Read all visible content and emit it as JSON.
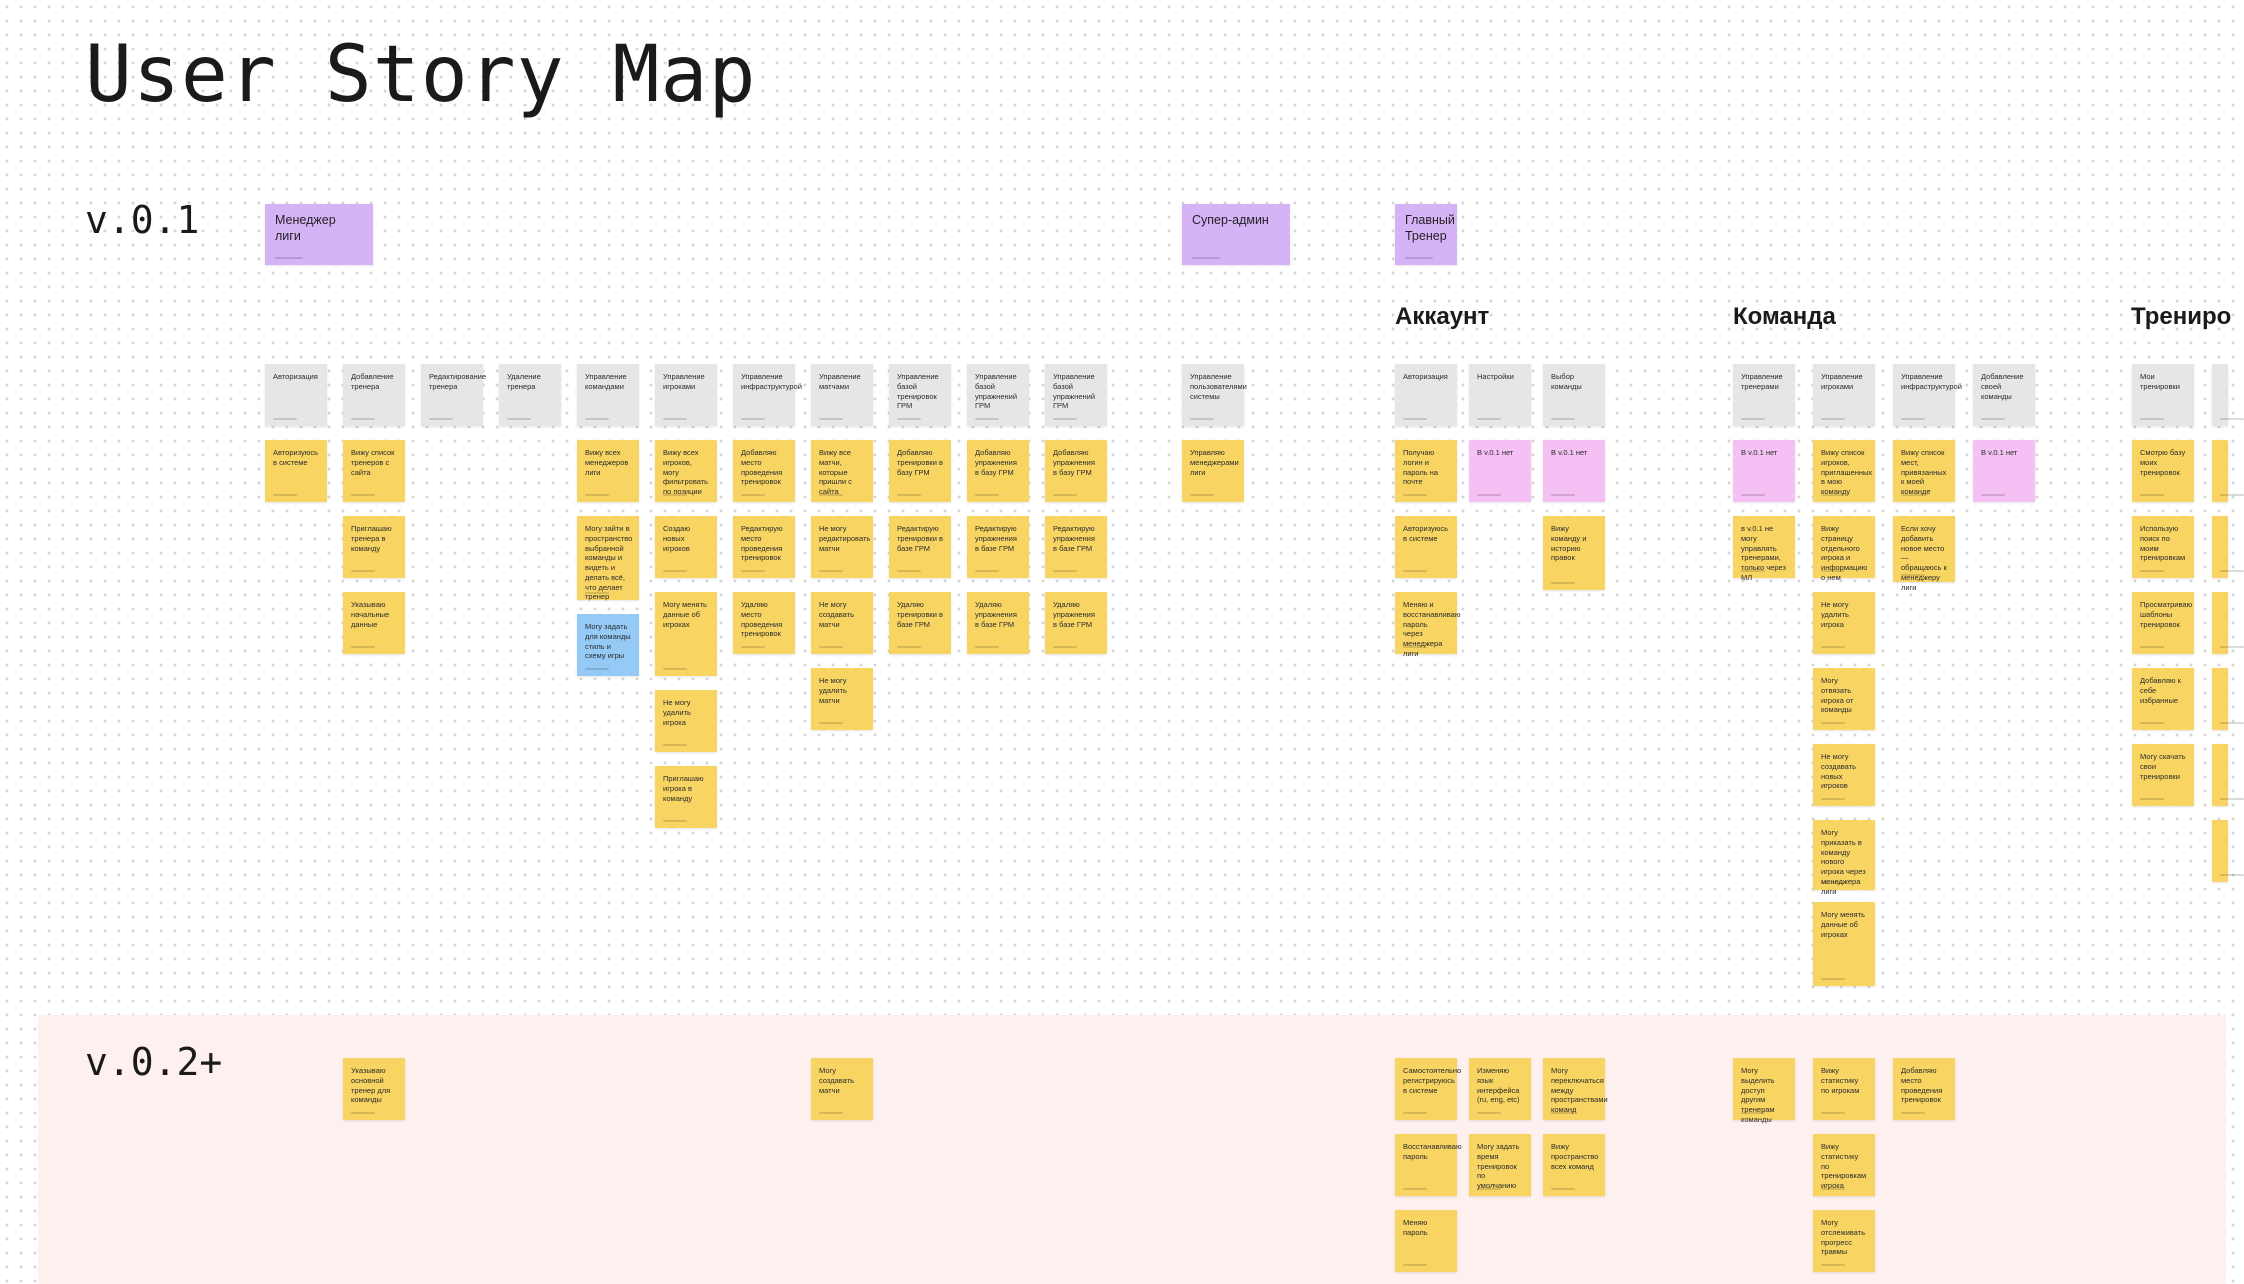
{
  "page": {
    "title": "User Story Map",
    "versions": [
      "v.0.1",
      "v.0.2+"
    ]
  },
  "colors": {
    "role": "#d6b2f7",
    "activity": "#e6e6e6",
    "story": "#f8d563",
    "blue_story": "#95c9f6",
    "pink_story": "#f5c0f3",
    "release_band": "#fdf0ee"
  },
  "roles": [
    "Менеджер лиги",
    "Супер-админ",
    "Главный Тренер"
  ],
  "sections": [
    "Аккаунт",
    "Команда",
    "Трениро"
  ],
  "notes": [
    "Авторизация",
    "Добавление тренера",
    "Редактирование тренера",
    "Удаление тренера",
    "Управление командами",
    "Управление игроками",
    "Управление инфраструктурой",
    "Управление матчами",
    "Управление базой тренировок ГРМ",
    "Управление базой упражнений ГРМ",
    "Управление базой упражнений ГРМ",
    "Управление пользователями системы",
    "Авторизация",
    "Настройки",
    "Выбор команды",
    "Управление тренерами",
    "Управление игроками",
    "Управление инфраструктурой",
    "Добавление своей команды",
    "Мои тренировки",
    "",
    "Авторизуюсь в системе",
    "Вижу список тренеров с сайта",
    "Приглашаю тренера в команду",
    "Указываю начальные данные",
    "Вижу всех менеджеров лиги",
    "Могу зайти в пространство выбранной команды и видеть и делать всё, что делает тренер",
    "Могу задать для команды стиль и схему игры",
    "Вижу всех игроков, могу фильтровать по позиции",
    "Создаю новых игроков",
    "Могу менять данные об игроках",
    "Не могу удалить игрока",
    "Приглашаю игрока в команду",
    "Добавляю место проведения тренировок",
    "Редактирую место проведения тренировок",
    "Удаляю место проведения тренировок",
    "Вижу все матчи, которые пришли с сайта",
    "Не могу редактировать матчи",
    "Не могу создавать матчи",
    "Не могу удалить матчи",
    "Добавляю тренировки в базу ГРМ",
    "Редактирую тренировки в базе ГРМ",
    "Удаляю тренировки в базе ГРМ",
    "Добавляю упражнения в базу ГРМ",
    "Редактирую упражнения в базе ГРМ",
    "Удаляю упражнения в базе ГРМ",
    "Добавляю упражнения в базу ГРМ",
    "Редактирую упражнения в базе ГРМ",
    "Удаляю упражнения в базе ГРМ",
    "Управляю менеджерами лиги",
    "Получаю логин и пароль на почте",
    "Авторизуюсь в системе",
    "Меняю и восстанавливаю пароль через менеджера лиги",
    "В v.0.1 нет",
    "В v.0.1 нет",
    "Вижу команду и историю правок",
    "В v.0.1 нет",
    "в v.0.1 не могу управлять тренерами, только через МЛ",
    "Вижу список игроков, приглашенных в мою команду",
    "Вижу страницу отдельного игрока и информацию о нем",
    "Не могу удалить игрока",
    "Могу отвязать игрока от команды",
    "Не могу создавать новых игроков",
    "Могу приказать в команду нового игрока через менеджера лиги",
    "Могу менять данные об игроках",
    "Вижу список мест, привязанных к моей команде",
    "Если хочу добавить новое место — обращаюсь к менеджеру лиги",
    "В v.0.1 нет",
    "Смотрю базу моих тренировок",
    "Использую поиск по моим тренировкам",
    "Просматриваю шаблоны тренировок",
    "Добавляю к себе избранные",
    "Могу скачать свои тренировки",
    "Указываю основной тренер для команды",
    "Могу создавать матчи",
    "Самостоятельно регистрируюсь в системе",
    "Восстанавливаю пароль",
    "Меняю пароль",
    "Изменяю язык интерфейса (ru, eng, etc)",
    "Могу задать время тренировок по умолчанию",
    "Могу переключаться между пространствами команд",
    "Вижу пространство всех команд",
    "Могу выделить доступ другим тренерам команды",
    "Вижу статистику по игрокам",
    "Вижу статистику по тренировкам игрока",
    "Могу отслеживать прогресс травмы",
    "Добавляю место проведения тренировок"
  ]
}
